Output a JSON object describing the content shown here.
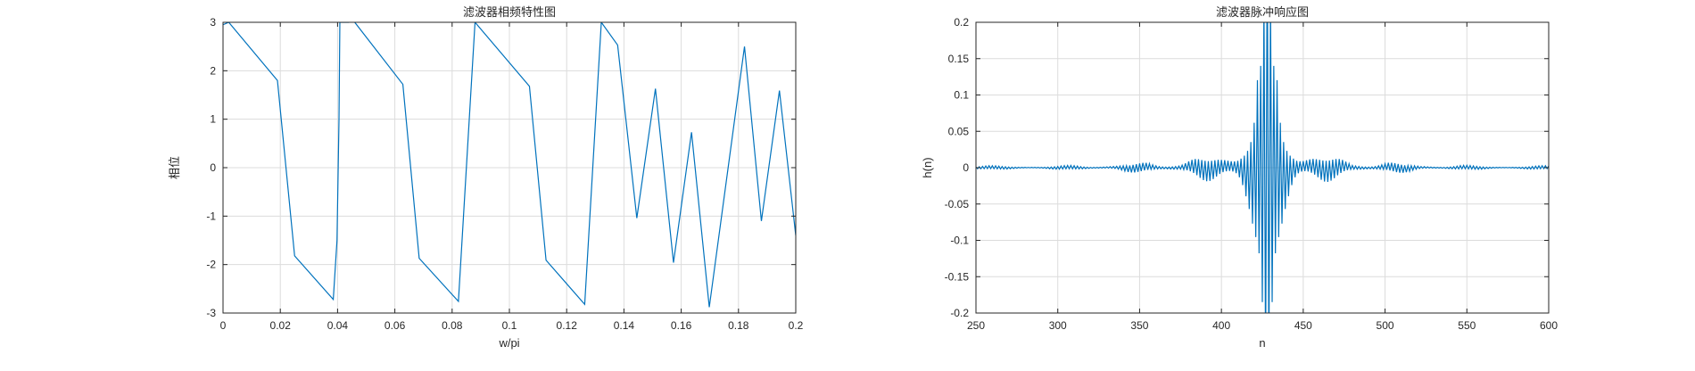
{
  "figure": {
    "background": "#ffffff",
    "line_color": "#0072bd",
    "grid_color": "#dcdcdc",
    "axis_color": "#262626"
  },
  "chart_data": [
    {
      "type": "line",
      "title": "滤波器相频特性图",
      "xlabel": "w/pi",
      "ylabel": "相位",
      "xlim": [
        0,
        0.2
      ],
      "ylim": [
        -3,
        3
      ],
      "xticks": [
        0,
        0.02,
        0.04,
        0.06,
        0.08,
        0.1,
        0.12,
        0.14,
        0.16,
        0.18,
        0.2
      ],
      "xtick_labels": [
        "0",
        "0.02",
        "0.04",
        "0.06",
        "0.08",
        "0.1",
        "0.12",
        "0.14",
        "0.16",
        "0.18",
        "0.2"
      ],
      "yticks": [
        -3,
        -2,
        -1,
        0,
        1,
        2,
        3
      ],
      "ytick_labels": [
        "-3",
        "-2",
        "-1",
        "0",
        "1",
        "2",
        "3"
      ],
      "grid": true,
      "series": [
        {
          "x": [
            0,
            0.002,
            0.019,
            0.025,
            0.0385,
            0.0398,
            0.0405,
            0.0408,
            0.0438,
            0.0444,
            0.046,
            0.0628,
            0.0685,
            0.0822,
            0.088,
            0.107,
            0.1128,
            0.1263,
            0.1321,
            0.1378,
            0.1445,
            0.151,
            0.1573,
            0.1636,
            0.1698,
            0.1821,
            0.188,
            0.1943,
            0.2
          ],
          "y": [
            2.95,
            3.0,
            1.8,
            -1.82,
            -2.72,
            -1.5,
            1.0,
            3.0,
            3.0,
            3.2,
            3.0,
            1.72,
            -1.87,
            -2.76,
            3.0,
            1.68,
            -1.91,
            -2.82,
            3.0,
            2.53,
            -1.04,
            1.63,
            -1.96,
            0.73,
            -2.88,
            2.5,
            -1.1,
            1.59,
            -1.4
          ]
        }
      ]
    },
    {
      "type": "line",
      "title": "滤波器脉冲响应图",
      "xlabel": "n",
      "ylabel": "h(n)",
      "xlim": [
        250,
        600
      ],
      "ylim": [
        -0.2,
        0.2
      ],
      "xticks": [
        250,
        300,
        350,
        400,
        450,
        500,
        550,
        600
      ],
      "xtick_labels": [
        "250",
        "300",
        "350",
        "400",
        "450",
        "500",
        "550",
        "600"
      ],
      "yticks": [
        -0.2,
        -0.15,
        -0.1,
        -0.05,
        0,
        0.05,
        0.1,
        0.15,
        0.2
      ],
      "ytick_labels": [
        "-0.2",
        "-0.15",
        "-0.1",
        "-0.05",
        "0",
        "0.05",
        "0.1",
        "0.15",
        "0.2"
      ],
      "grid": true,
      "series": [
        {
          "n_start": 250,
          "n_end": 600,
          "description_of_shape": "symmetric impulse response centered at n≈428 with an alternating-sign carrier and a sinc-like envelope; peaks exceed ±0.2 near the center",
          "center_n": 428,
          "envelope_points": [
            {
              "n": 250,
              "amp": 0.002
            },
            {
              "n": 270,
              "amp": 0.002
            },
            {
              "n": 290,
              "amp": 0.001
            },
            {
              "n": 312,
              "amp": 0.003
            },
            {
              "n": 335,
              "amp": 0.002
            },
            {
              "n": 355,
              "amp": 0.008
            },
            {
              "n": 375,
              "amp": 0.004
            },
            {
              "n": 400,
              "amp": 0.022
            },
            {
              "n": 410,
              "amp": 0.04
            },
            {
              "n": 418,
              "amp": 0.08
            },
            {
              "n": 424,
              "amp": 0.14
            },
            {
              "n": 428,
              "amp": 0.32
            },
            {
              "n": 432,
              "amp": 0.14
            },
            {
              "n": 438,
              "amp": 0.08
            },
            {
              "n": 446,
              "amp": 0.04
            },
            {
              "n": 458,
              "amp": 0.022
            },
            {
              "n": 480,
              "amp": 0.004
            },
            {
              "n": 502,
              "amp": 0.008
            },
            {
              "n": 522,
              "amp": 0.002
            },
            {
              "n": 545,
              "amp": 0.003
            },
            {
              "n": 568,
              "amp": 0.001
            },
            {
              "n": 590,
              "amp": 0.002
            },
            {
              "n": 600,
              "amp": 0.002
            }
          ]
        }
      ]
    }
  ]
}
